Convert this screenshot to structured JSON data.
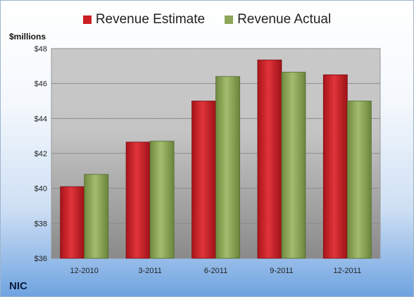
{
  "units_label": "$millions",
  "company_label": "NIC",
  "chart_data": {
    "type": "bar",
    "categories": [
      "12-2010",
      "3-2011",
      "6-2011",
      "9-2011",
      "12-2011"
    ],
    "series": [
      {
        "name": "Revenue Estimate",
        "color": "#cc1f24",
        "values": [
          40.1,
          42.65,
          45.0,
          47.35,
          46.5
        ]
      },
      {
        "name": "Revenue Actual",
        "color": "#8ea65a",
        "values": [
          40.8,
          42.7,
          46.4,
          46.65,
          45.0
        ]
      }
    ],
    "ylim": [
      36,
      48
    ],
    "yticks": [
      "$36",
      "$38",
      "$40",
      "$42",
      "$44",
      "$46",
      "$48"
    ],
    "ytick_values": [
      36,
      38,
      40,
      42,
      44,
      46,
      48
    ],
    "grid": true,
    "legend_position": "top"
  }
}
